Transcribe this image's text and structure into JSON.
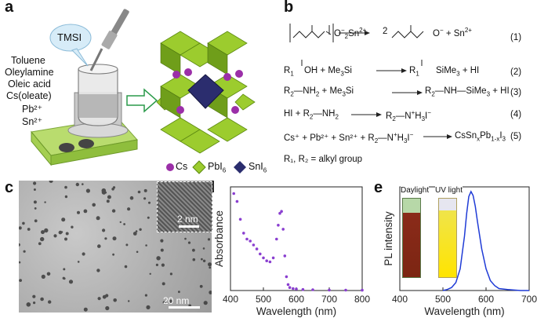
{
  "panels": {
    "a": "a",
    "b": "b",
    "c": "c",
    "d": "d",
    "e": "e"
  },
  "a": {
    "tmsi": "TMSI",
    "reagents": [
      "Toluene",
      "Oleylamine",
      "Oleic acid",
      "Cs(oleate)",
      "Pb²⁺",
      "Sn²⁺"
    ],
    "legend": {
      "cs": "Cs",
      "pbi6": "PbI",
      "pbi6_sub": "6",
      "sni6": "SnI",
      "sni6_sub": "6"
    },
    "colors": {
      "green": "#9ccc2e",
      "darkgreen": "#5d8a12",
      "purple": "#9b2fa8",
      "navy": "#2b2d6e",
      "arrow": "#2a9a4a"
    }
  },
  "b": {
    "eq_numbers": [
      "(1)",
      "(2)",
      "(3)",
      "(4)",
      "(5)"
    ],
    "eq1_rhs": "2",
    "eq1_ion": "Sn",
    "eq2_r": "R",
    "eq2_oh": "OH + Me",
    "eq2_si": "Si",
    "eq2_hi": "+ HI",
    "eq2_sime": "SiMe",
    "eq3_l": "R",
    "eq3_nh2": "—NH",
    "eq3_me": "+ Me",
    "eq3_si": "Si",
    "eq3_r": "R",
    "eq3_rest": "—NH—SiMe",
    "eq3_hi": "+ HI",
    "eq4_l": "HI + R",
    "eq4_nh": "—NH",
    "eq4_r": "R",
    "eq4_nh3": "—N",
    "eq4_h3": "H",
    "eq4_i": "I",
    "eq5": "Cs⁺ + Pb²⁺ + Sn²⁺ + R",
    "eq5_prod": "CsSn",
    "alkyl": "R₁, R₂ = alkyl group"
  },
  "c": {
    "scale_main": "20 nm",
    "scale_inset": "2 nm"
  },
  "d": {
    "ylabel": "Absorbance",
    "xlabel": "Wavelength (nm)"
  },
  "e": {
    "ylabel": "PL intensity",
    "xlabel": "Wavelength (nm)",
    "daylight": "Daylight",
    "uv": "UV light"
  },
  "chart_data": [
    {
      "type": "scatter",
      "panel": "d",
      "xlabel": "Wavelength (nm)",
      "ylabel": "Absorbance",
      "xlim": [
        400,
        800
      ],
      "xticks": [
        400,
        500,
        600,
        700,
        800
      ],
      "series": [
        {
          "color": "#8a3fd0",
          "x": [
            410,
            420,
            430,
            440,
            450,
            460,
            470,
            480,
            490,
            500,
            510,
            520,
            530,
            540,
            545,
            550,
            555,
            560,
            565,
            570,
            575,
            580,
            590,
            600,
            620,
            650,
            700,
            750,
            800
          ],
          "y": [
            0.98,
            0.9,
            0.72,
            0.58,
            0.52,
            0.5,
            0.46,
            0.42,
            0.37,
            0.33,
            0.3,
            0.29,
            0.33,
            0.52,
            0.66,
            0.78,
            0.8,
            0.62,
            0.35,
            0.14,
            0.06,
            0.03,
            0.02,
            0.015,
            0.01,
            0.008,
            0.005,
            0.004,
            0.003
          ]
        }
      ]
    },
    {
      "type": "line",
      "panel": "e",
      "xlabel": "Wavelength (nm)",
      "ylabel": "PL intensity",
      "xlim": [
        400,
        700
      ],
      "xticks": [
        400,
        500,
        600,
        700
      ],
      "series": [
        {
          "color": "#1f3bd6",
          "x": [
            500,
            510,
            520,
            530,
            540,
            550,
            555,
            560,
            565,
            570,
            575,
            580,
            590,
            600,
            610,
            620,
            630,
            650,
            680,
            700
          ],
          "y": [
            0.0,
            0.01,
            0.03,
            0.08,
            0.22,
            0.55,
            0.78,
            0.95,
            1.0,
            0.96,
            0.85,
            0.7,
            0.42,
            0.22,
            0.1,
            0.05,
            0.02,
            0.01,
            0.0,
            0.0
          ]
        }
      ]
    }
  ]
}
